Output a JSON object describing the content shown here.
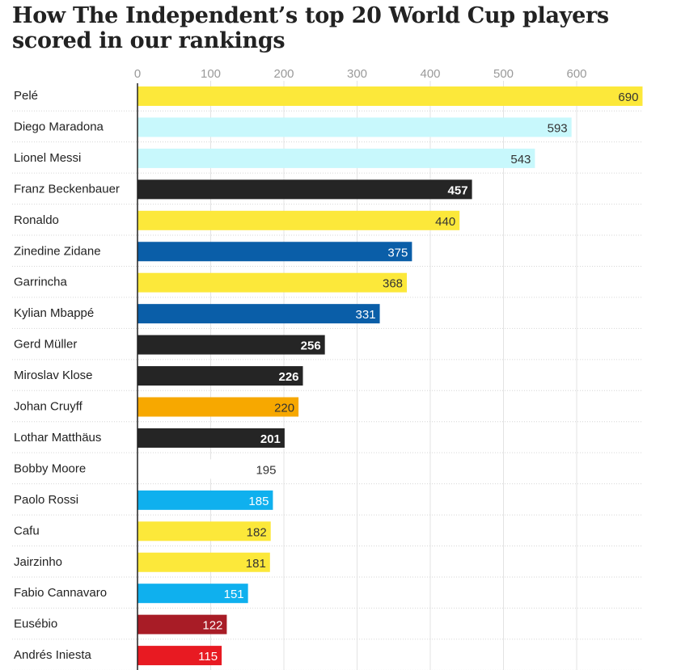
{
  "title": "How The Independent’s top 20 World Cup players scored in our rankings",
  "colors": {
    "yellow": "#fce83a",
    "light_cyan": "#c8f8fc",
    "black": "#252525",
    "dark_blue": "#0a5ea8",
    "orange": "#f7a800",
    "white": "#ffffff",
    "sky_blue": "#0fb0ee",
    "dark_red": "#a81c26",
    "red": "#e81a22"
  },
  "chart_data": {
    "type": "bar",
    "orientation": "horizontal",
    "title": "How The Independent’s top 20 World Cup players scored in our rankings",
    "xlim": [
      0,
      690
    ],
    "x_ticks": [
      0,
      100,
      200,
      300,
      400,
      500,
      600
    ],
    "grid": true,
    "categories": [
      "Pelé",
      "Diego Maradona",
      "Lionel Messi",
      "Franz Beckenbauer",
      "Ronaldo",
      "Zinedine Zidane",
      "Garrincha",
      "Kylian Mbappé",
      "Gerd Müller",
      "Miroslav Klose",
      "Johan Cruyff",
      "Lothar Matthäus",
      "Bobby Moore",
      "Paolo Rossi",
      "Cafu",
      "Jairzinho",
      "Fabio Cannavaro",
      "Eusébio",
      "Andrés Iniesta"
    ],
    "values": [
      690,
      593,
      543,
      457,
      440,
      375,
      368,
      331,
      256,
      226,
      220,
      201,
      195,
      185,
      182,
      181,
      151,
      122,
      115
    ],
    "bar_colors": [
      "yellow",
      "light_cyan",
      "light_cyan",
      "black",
      "yellow",
      "dark_blue",
      "yellow",
      "dark_blue",
      "black",
      "black",
      "orange",
      "black",
      "white",
      "sky_blue",
      "yellow",
      "yellow",
      "sky_blue",
      "dark_red",
      "red"
    ]
  }
}
